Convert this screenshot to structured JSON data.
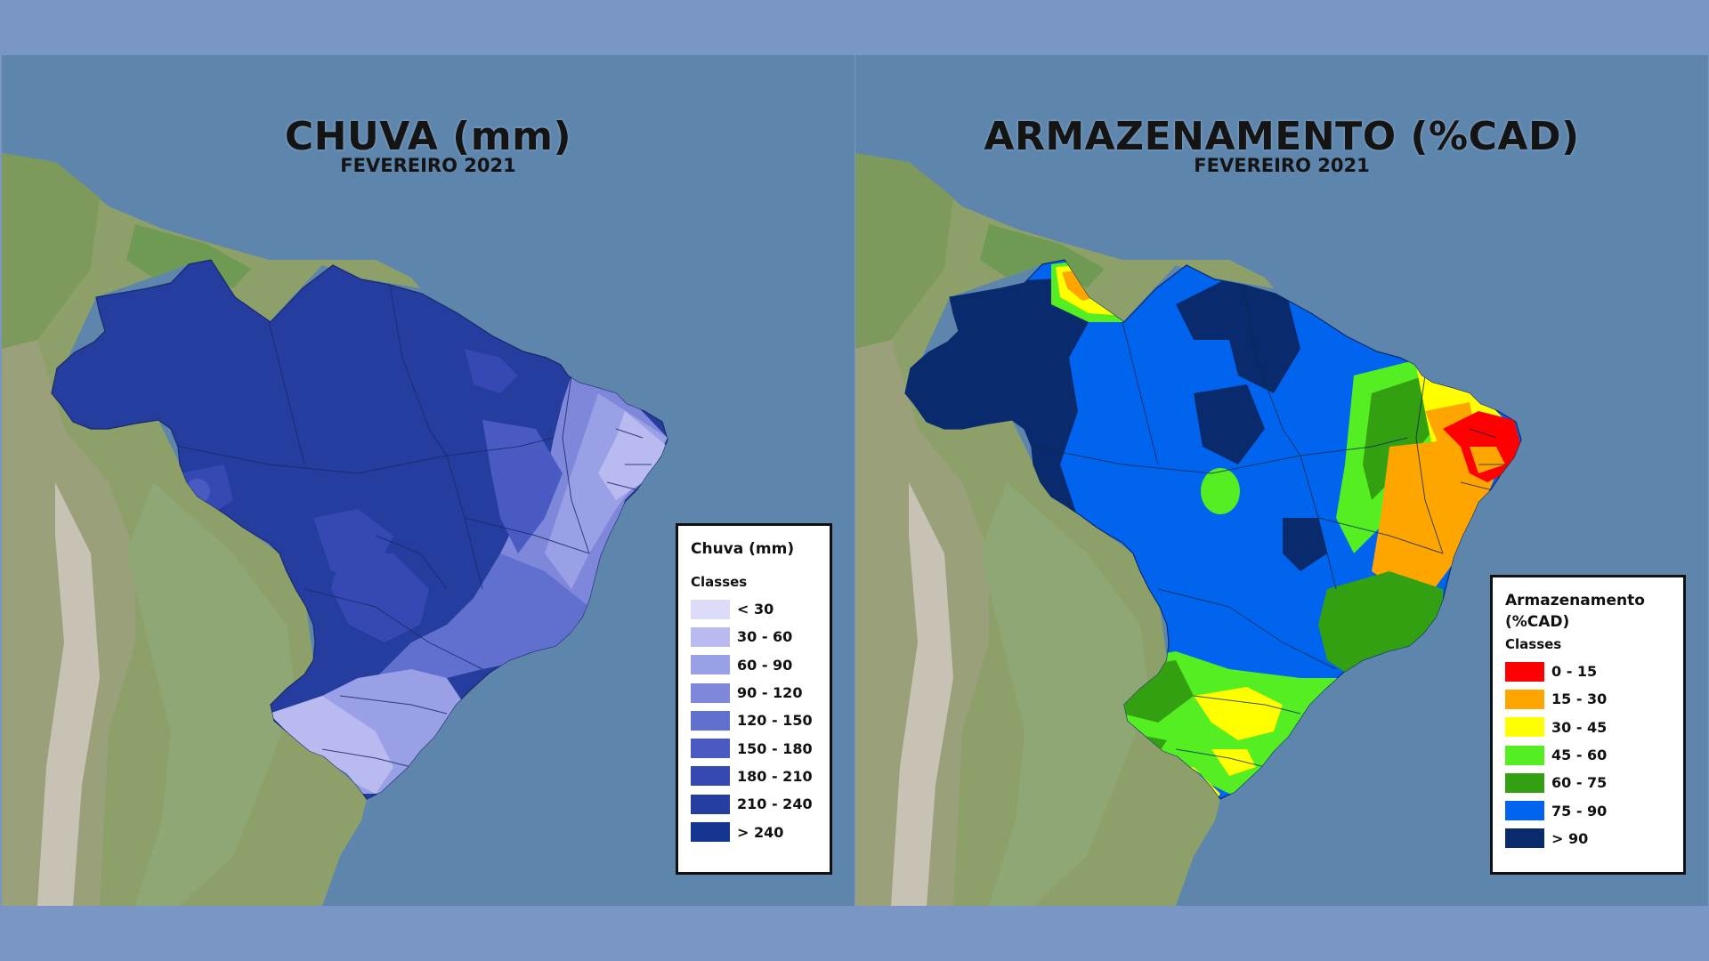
{
  "left_map": {
    "title": "CHUVA (mm)",
    "subtitle": "FEVEREIRO 2021",
    "legend": {
      "title": "Chuva (mm)",
      "classes_label": "Classes",
      "items": [
        {
          "label": "< 30",
          "color": "#dcdcf8"
        },
        {
          "label": "30 - 60",
          "color": "#b9baef"
        },
        {
          "label": "60 - 90",
          "color": "#9aa0e6"
        },
        {
          "label": "90 - 120",
          "color": "#7f87db"
        },
        {
          "label": "120 - 150",
          "color": "#6170cf"
        },
        {
          "label": "150 - 180",
          "color": "#4a5ac3"
        },
        {
          "label": "180 - 210",
          "color": "#3548b3"
        },
        {
          "label": "210 - 240",
          "color": "#243d9e"
        },
        {
          "label": "> 240",
          "color": "#153690"
        }
      ]
    }
  },
  "right_map": {
    "title": "ARMAZENAMENTO (%CAD)",
    "subtitle": "FEVEREIRO 2021",
    "legend": {
      "title_line1": "Armazenamento",
      "title_line2": "(%CAD)",
      "classes_label": "Classes",
      "items": [
        {
          "label": "0 - 15",
          "color": "#ff0000"
        },
        {
          "label": "15 - 30",
          "color": "#ffa500"
        },
        {
          "label": "30 - 45",
          "color": "#ffff00"
        },
        {
          "label": "45 - 60",
          "color": "#55ee22"
        },
        {
          "label": "60 - 75",
          "color": "#33a011"
        },
        {
          "label": "75 - 90",
          "color": "#0064ee"
        },
        {
          "label": "> 90",
          "color": "#0a2a6e"
        }
      ]
    }
  }
}
